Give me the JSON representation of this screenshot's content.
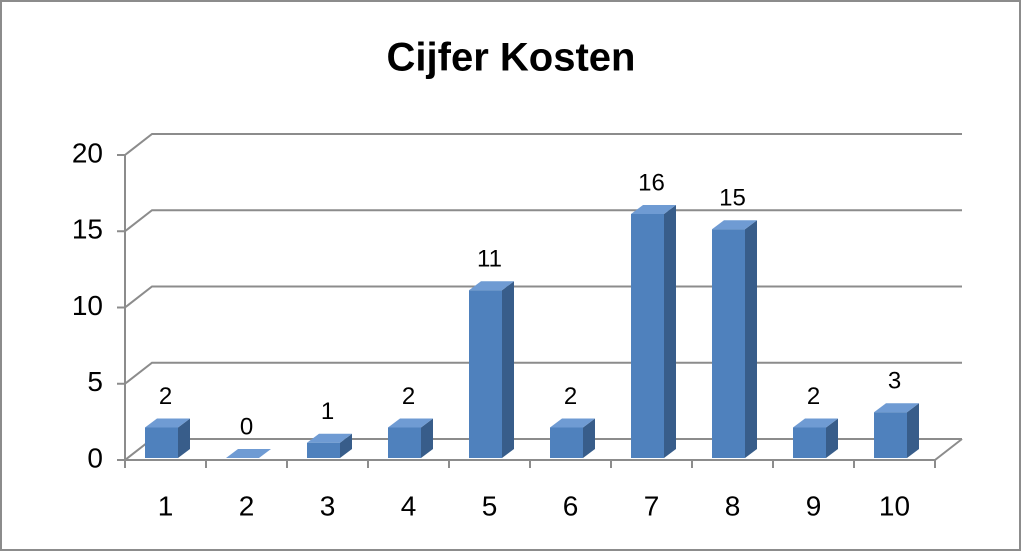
{
  "chart_data": {
    "type": "bar",
    "title": "Cijfer Kosten",
    "categories": [
      "1",
      "2",
      "3",
      "4",
      "5",
      "6",
      "7",
      "8",
      "9",
      "10"
    ],
    "values": [
      2,
      0,
      1,
      2,
      11,
      2,
      16,
      15,
      2,
      3
    ],
    "color": "#4f81bd",
    "ylim": [
      0,
      20
    ],
    "yticks": [
      0,
      5,
      10,
      15,
      20
    ],
    "grid": true
  }
}
